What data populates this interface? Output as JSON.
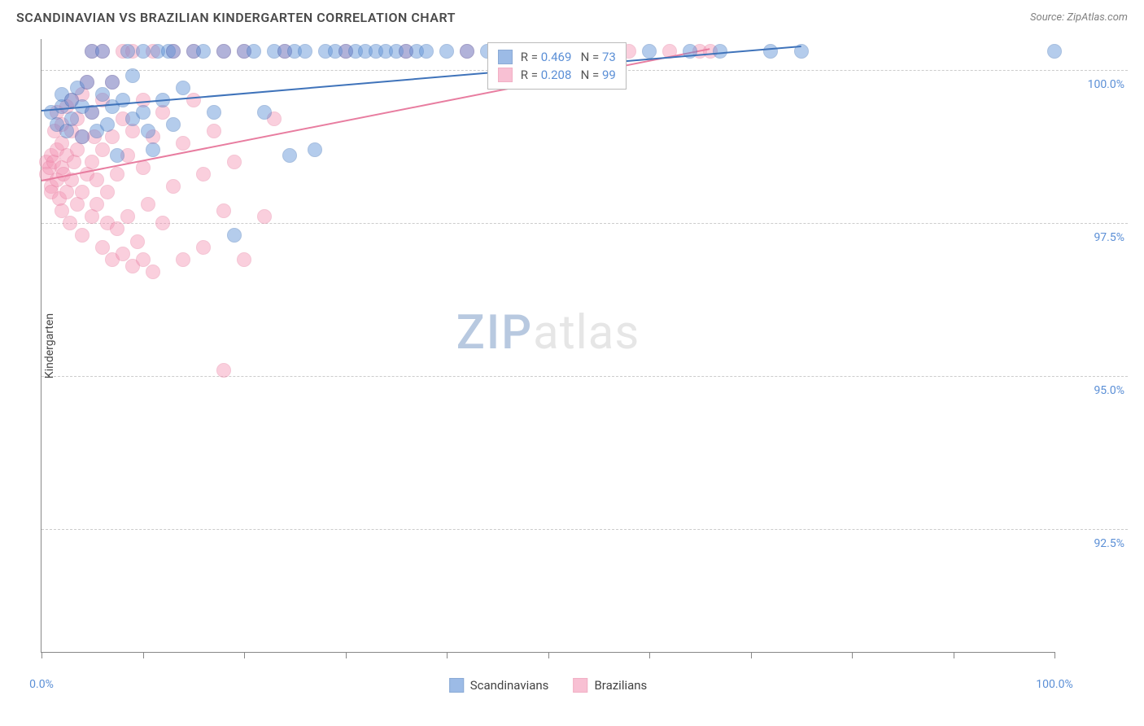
{
  "title": "SCANDINAVIAN VS BRAZILIAN KINDERGARTEN CORRELATION CHART",
  "source_label": "Source: ZipAtlas.com",
  "y_axis_label": "Kindergarten",
  "watermark": {
    "part1": "ZIP",
    "part2": "atlas"
  },
  "chart": {
    "type": "scatter",
    "xlim": [
      0,
      100
    ],
    "ylim": [
      90.5,
      100.5
    ],
    "y_ticks": [
      92.5,
      95.0,
      97.5,
      100.0
    ],
    "y_tick_labels": [
      "92.5%",
      "95.0%",
      "97.5%",
      "100.0%"
    ],
    "x_ticks": [
      0,
      10,
      20,
      30,
      40,
      50,
      60,
      70,
      80,
      90,
      100
    ],
    "x_min_label": "0.0%",
    "x_max_label": "100.0%",
    "grid_color": "#cccccc",
    "axis_color": "#888888",
    "background_color": "#ffffff",
    "marker_radius": 9,
    "marker_opacity": 0.45,
    "series": [
      {
        "name": "Scandinavians",
        "color_fill": "#5b8fd6",
        "color_stroke": "#3f73ba",
        "r_value": "0.469",
        "n_value": "73",
        "trend": {
          "x1": 0,
          "y1": 99.35,
          "x2": 75,
          "y2": 100.4
        },
        "points": [
          [
            1,
            99.3
          ],
          [
            1.5,
            99.1
          ],
          [
            2,
            99.4
          ],
          [
            2,
            99.6
          ],
          [
            2.5,
            99.0
          ],
          [
            3,
            99.5
          ],
          [
            3,
            99.2
          ],
          [
            3.5,
            99.7
          ],
          [
            4,
            99.4
          ],
          [
            4,
            98.9
          ],
          [
            4.5,
            99.8
          ],
          [
            5,
            99.3
          ],
          [
            5,
            100.3
          ],
          [
            5.5,
            99.0
          ],
          [
            6,
            99.6
          ],
          [
            6,
            100.3
          ],
          [
            6.5,
            99.1
          ],
          [
            7,
            99.4
          ],
          [
            7,
            99.8
          ],
          [
            7.5,
            98.6
          ],
          [
            8,
            99.5
          ],
          [
            8.5,
            100.3
          ],
          [
            9,
            99.2
          ],
          [
            9,
            99.9
          ],
          [
            10,
            100.3
          ],
          [
            10,
            99.3
          ],
          [
            10.5,
            99.0
          ],
          [
            11,
            98.7
          ],
          [
            11.5,
            100.3
          ],
          [
            12,
            99.5
          ],
          [
            12.5,
            100.3
          ],
          [
            13,
            99.1
          ],
          [
            13,
            100.3
          ],
          [
            14,
            99.7
          ],
          [
            15,
            100.3
          ],
          [
            16,
            100.3
          ],
          [
            17,
            99.3
          ],
          [
            18,
            100.3
          ],
          [
            19,
            97.3
          ],
          [
            20,
            100.3
          ],
          [
            21,
            100.3
          ],
          [
            22,
            99.3
          ],
          [
            23,
            100.3
          ],
          [
            24,
            100.3
          ],
          [
            24.5,
            98.6
          ],
          [
            25,
            100.3
          ],
          [
            26,
            100.3
          ],
          [
            27,
            98.7
          ],
          [
            28,
            100.3
          ],
          [
            29,
            100.3
          ],
          [
            30,
            100.3
          ],
          [
            31,
            100.3
          ],
          [
            32,
            100.3
          ],
          [
            33,
            100.3
          ],
          [
            34,
            100.3
          ],
          [
            35,
            100.3
          ],
          [
            36,
            100.3
          ],
          [
            37,
            100.3
          ],
          [
            38,
            100.3
          ],
          [
            40,
            100.3
          ],
          [
            42,
            100.3
          ],
          [
            44,
            100.3
          ],
          [
            46,
            100.3
          ],
          [
            48,
            100.3
          ],
          [
            52,
            100.3
          ],
          [
            55,
            100.3
          ],
          [
            60,
            100.3
          ],
          [
            64,
            100.3
          ],
          [
            67,
            100.3
          ],
          [
            72,
            100.3
          ],
          [
            75,
            100.3
          ],
          [
            100,
            100.3
          ]
        ]
      },
      {
        "name": "Brazilians",
        "color_fill": "#f497b6",
        "color_stroke": "#e87da0",
        "r_value": "0.208",
        "n_value": "99",
        "trend": {
          "x1": 0,
          "y1": 98.2,
          "x2": 66,
          "y2": 100.35
        },
        "points": [
          [
            0.5,
            98.5
          ],
          [
            0.5,
            98.3
          ],
          [
            0.8,
            98.4
          ],
          [
            1,
            98.1
          ],
          [
            1,
            98.6
          ],
          [
            1,
            98.0
          ],
          [
            1.2,
            98.5
          ],
          [
            1.3,
            99.0
          ],
          [
            1.5,
            98.2
          ],
          [
            1.5,
            98.7
          ],
          [
            1.5,
            99.3
          ],
          [
            1.8,
            97.9
          ],
          [
            2,
            98.4
          ],
          [
            2,
            98.8
          ],
          [
            2,
            99.1
          ],
          [
            2,
            97.7
          ],
          [
            2.2,
            98.3
          ],
          [
            2.5,
            98.0
          ],
          [
            2.5,
            98.6
          ],
          [
            2.5,
            99.4
          ],
          [
            2.8,
            97.5
          ],
          [
            3,
            98.2
          ],
          [
            3,
            99.0
          ],
          [
            3,
            99.5
          ],
          [
            3.2,
            98.5
          ],
          [
            3.5,
            97.8
          ],
          [
            3.5,
            98.7
          ],
          [
            3.5,
            99.2
          ],
          [
            4,
            98.0
          ],
          [
            4,
            98.9
          ],
          [
            4,
            99.6
          ],
          [
            4,
            97.3
          ],
          [
            4.5,
            98.3
          ],
          [
            4.5,
            99.8
          ],
          [
            5,
            97.6
          ],
          [
            5,
            98.5
          ],
          [
            5,
            99.3
          ],
          [
            5,
            100.3
          ],
          [
            5.2,
            98.9
          ],
          [
            5.5,
            97.8
          ],
          [
            5.5,
            98.2
          ],
          [
            6,
            97.1
          ],
          [
            6,
            98.7
          ],
          [
            6,
            99.5
          ],
          [
            6,
            100.3
          ],
          [
            6.5,
            97.5
          ],
          [
            6.5,
            98.0
          ],
          [
            7,
            98.9
          ],
          [
            7,
            99.8
          ],
          [
            7,
            96.9
          ],
          [
            7.5,
            97.4
          ],
          [
            7.5,
            98.3
          ],
          [
            8,
            97.0
          ],
          [
            8,
            99.2
          ],
          [
            8,
            100.3
          ],
          [
            8.5,
            97.6
          ],
          [
            8.5,
            98.6
          ],
          [
            9,
            96.8
          ],
          [
            9,
            99.0
          ],
          [
            9,
            100.3
          ],
          [
            9.5,
            97.2
          ],
          [
            10,
            96.9
          ],
          [
            10,
            98.4
          ],
          [
            10,
            99.5
          ],
          [
            10.5,
            97.8
          ],
          [
            11,
            98.9
          ],
          [
            11,
            100.3
          ],
          [
            11,
            96.7
          ],
          [
            12,
            99.3
          ],
          [
            12,
            97.5
          ],
          [
            13,
            98.1
          ],
          [
            13,
            100.3
          ],
          [
            14,
            98.8
          ],
          [
            14,
            96.9
          ],
          [
            15,
            99.5
          ],
          [
            15,
            100.3
          ],
          [
            16,
            98.3
          ],
          [
            16,
            97.1
          ],
          [
            17,
            99.0
          ],
          [
            18,
            97.7
          ],
          [
            18,
            100.3
          ],
          [
            18,
            95.1
          ],
          [
            19,
            98.5
          ],
          [
            20,
            96.9
          ],
          [
            20,
            100.3
          ],
          [
            22,
            97.6
          ],
          [
            23,
            99.2
          ],
          [
            24,
            100.3
          ],
          [
            30,
            100.3
          ],
          [
            36,
            100.3
          ],
          [
            42,
            100.3
          ],
          [
            50,
            100.3
          ],
          [
            55,
            100.3
          ],
          [
            58,
            100.3
          ],
          [
            62,
            100.3
          ],
          [
            65,
            100.3
          ],
          [
            66,
            100.3
          ]
        ]
      }
    ],
    "legend_stats": {
      "r_label": "R =",
      "n_label": "N ="
    },
    "bottom_legend": {
      "items": [
        "Scandinavians",
        "Brazilians"
      ]
    }
  }
}
